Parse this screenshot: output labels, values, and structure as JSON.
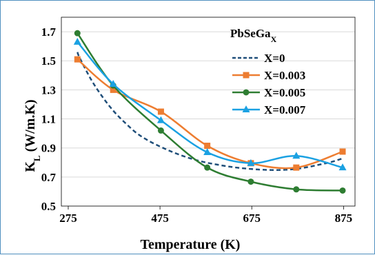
{
  "chart_data": {
    "type": "line",
    "xlabel": "Temperature (K)",
    "ylabel_main": "K",
    "ylabel_sub": "L",
    "ylabel_rest": " (W/m.K)",
    "legend_title_main": "PbSeGa",
    "legend_title_sub": "X",
    "xlim": [
      260,
      900
    ],
    "ylim": [
      0.5,
      1.8
    ],
    "xticks": [
      275,
      475,
      675,
      875
    ],
    "yticks": [
      0.5,
      0.7,
      0.9,
      1.1,
      1.3,
      1.5,
      1.7
    ],
    "xtick_labels": [
      "275",
      "475",
      "675",
      "875"
    ],
    "ytick_labels": [
      "0.5",
      "0.7",
      "0.9",
      "1.1",
      "1.3",
      "1.5",
      "1.7"
    ],
    "grid": "horizontal",
    "legend_position": "top-right",
    "series": [
      {
        "name": "X=0",
        "color": "#1f4e79",
        "style": "dashed",
        "marker": "none",
        "x": [
          295,
          300,
          325,
          350,
          375,
          400,
          425,
          450,
          475,
          500,
          525,
          550,
          575,
          600,
          625,
          650,
          675,
          700,
          725,
          750,
          775,
          800,
          825,
          850,
          875
        ],
        "y": [
          1.56,
          1.52,
          1.37,
          1.25,
          1.15,
          1.07,
          1.0,
          0.95,
          0.91,
          0.875,
          0.845,
          0.82,
          0.8,
          0.785,
          0.772,
          0.762,
          0.755,
          0.75,
          0.748,
          0.75,
          0.757,
          0.77,
          0.787,
          0.805,
          0.83
        ]
      },
      {
        "name": "X=0.003",
        "color": "#ed7d31",
        "style": "solid",
        "marker": "square",
        "x": [
          295,
          373,
          477,
          578,
          673,
          772,
          873
        ],
        "y": [
          1.51,
          1.3,
          1.15,
          0.915,
          0.795,
          0.765,
          0.875
        ]
      },
      {
        "name": "X=0.005",
        "color": "#2e7d32",
        "style": "solid",
        "marker": "circle",
        "x": [
          295,
          373,
          477,
          578,
          673,
          772,
          873
        ],
        "y": [
          1.69,
          1.33,
          1.02,
          0.765,
          0.668,
          0.615,
          0.607
        ]
      },
      {
        "name": "X=0.007",
        "color": "#1ba1e2",
        "style": "solid",
        "marker": "triangle",
        "x": [
          295,
          373,
          477,
          578,
          673,
          772,
          873
        ],
        "y": [
          1.63,
          1.34,
          1.09,
          0.87,
          0.795,
          0.845,
          0.765
        ]
      }
    ]
  }
}
